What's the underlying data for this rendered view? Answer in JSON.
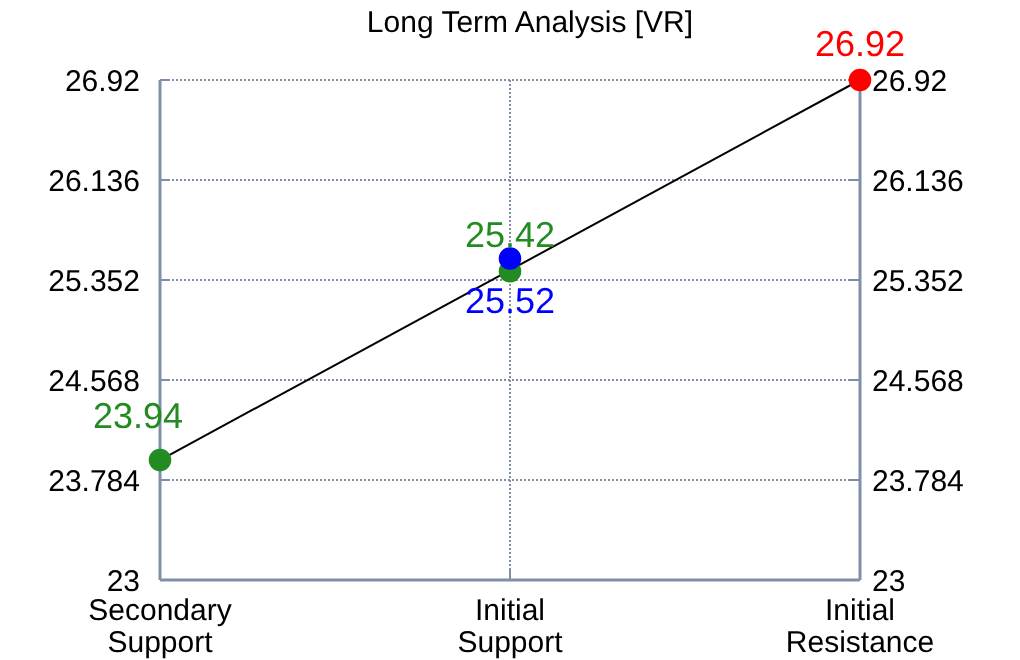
{
  "chart_data": {
    "type": "scatter",
    "title": "Long Term Analysis [VR]",
    "categories": [
      "Secondary Support",
      "Initial Support",
      "Initial Resistance"
    ],
    "ylim": [
      23,
      26.92
    ],
    "yticks": [
      23,
      23.784,
      24.568,
      25.352,
      26.136,
      26.92
    ],
    "y2lim": [
      23,
      26.92
    ],
    "y2ticks": [
      23,
      23.784,
      24.568,
      25.352,
      26.136,
      26.92
    ],
    "grid": true,
    "series": [
      {
        "type": "line",
        "color": "#000000",
        "values": [
          23.94,
          null,
          26.92
        ],
        "marker": "none"
      },
      {
        "color": "#228b22",
        "values": [
          23.94,
          25.42,
          null
        ],
        "marker": "circle",
        "value_labels": [
          "23.94",
          "25.42",
          null
        ]
      },
      {
        "color": "#0000ff",
        "values": [
          null,
          25.52,
          null
        ],
        "marker": "circle",
        "value_labels": [
          null,
          "25.52",
          null
        ]
      },
      {
        "color": "#ff0000",
        "values": [
          null,
          null,
          26.92
        ],
        "marker": "circle",
        "value_labels": [
          null,
          null,
          "26.92"
        ]
      }
    ]
  }
}
